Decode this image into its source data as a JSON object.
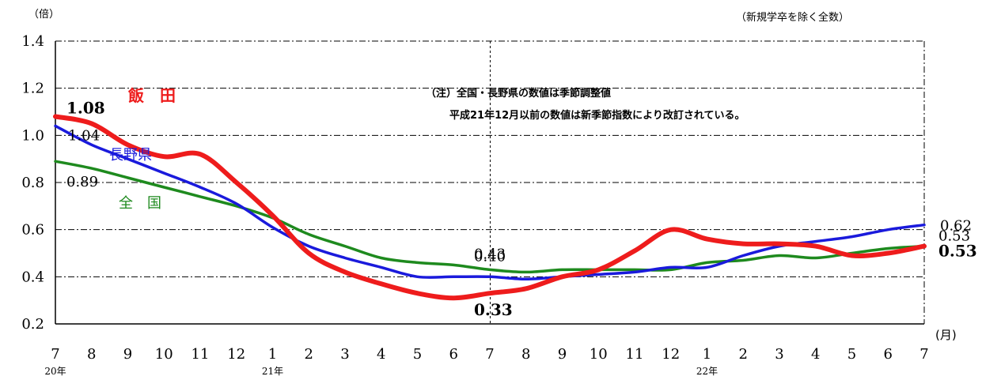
{
  "chart_data": {
    "type": "line",
    "y_unit": "（倍）",
    "corner_note": "（新規学卒を除く全数）",
    "x_unit": "(月)",
    "ylim": [
      0.2,
      1.4
    ],
    "yticks": [
      "0.2",
      "0.4",
      "0.6",
      "0.8",
      "1.0",
      "1.2",
      "1.4"
    ],
    "categories": [
      "7",
      "8",
      "9",
      "10",
      "11",
      "12",
      "1",
      "2",
      "3",
      "4",
      "5",
      "6",
      "7",
      "8",
      "9",
      "10",
      "11",
      "12",
      "1",
      "2",
      "3",
      "4",
      "5",
      "6",
      "7"
    ],
    "year_labels": [
      {
        "index": 0,
        "label": "20年"
      },
      {
        "index": 6,
        "label": "21年"
      },
      {
        "index": 18,
        "label": "22年"
      }
    ],
    "grid": "horizontal dash-dot",
    "note_lines": [
      "（注）全国・長野県の数値は季節調整値",
      "平成21年12月以前の数値は新季節指数により改訂されている。"
    ],
    "series": [
      {
        "name": "飯　田",
        "color": "#ee1c1c",
        "values": [
          1.08,
          1.05,
          0.96,
          0.91,
          0.92,
          0.8,
          0.66,
          0.5,
          0.42,
          0.37,
          0.33,
          0.31,
          0.33,
          0.35,
          0.4,
          0.43,
          0.51,
          0.6,
          0.56,
          0.54,
          0.54,
          0.53,
          0.49,
          0.5,
          0.53
        ]
      },
      {
        "name": "長野県",
        "color": "#1a1adc",
        "values": [
          1.04,
          0.96,
          0.9,
          0.84,
          0.78,
          0.71,
          0.61,
          0.53,
          0.48,
          0.44,
          0.4,
          0.4,
          0.4,
          0.39,
          0.4,
          0.41,
          0.42,
          0.44,
          0.44,
          0.49,
          0.53,
          0.55,
          0.57,
          0.6,
          0.62
        ]
      },
      {
        "name": "全　国",
        "color": "#1e8a1e",
        "values": [
          0.89,
          0.86,
          0.82,
          0.78,
          0.74,
          0.7,
          0.65,
          0.58,
          0.53,
          0.48,
          0.46,
          0.45,
          0.43,
          0.42,
          0.43,
          0.43,
          0.43,
          0.43,
          0.46,
          0.47,
          0.49,
          0.48,
          0.5,
          0.52,
          0.53
        ]
      }
    ],
    "value_labels": [
      {
        "series": 0,
        "index": 0,
        "text": "1.08"
      },
      {
        "series": 1,
        "index": 0,
        "text": "1.04"
      },
      {
        "series": 2,
        "index": 0,
        "text": "0.89"
      },
      {
        "series": 2,
        "index": 12,
        "text": "0.43"
      },
      {
        "series": 1,
        "index": 12,
        "text": "0.40"
      },
      {
        "series": 0,
        "index": 12,
        "text": "0.33"
      },
      {
        "series": 1,
        "index": 24,
        "text": "0.62"
      },
      {
        "series": 2,
        "index": 24,
        "text": "0.53"
      },
      {
        "series": 0,
        "index": 24,
        "text": "0.53"
      }
    ]
  }
}
